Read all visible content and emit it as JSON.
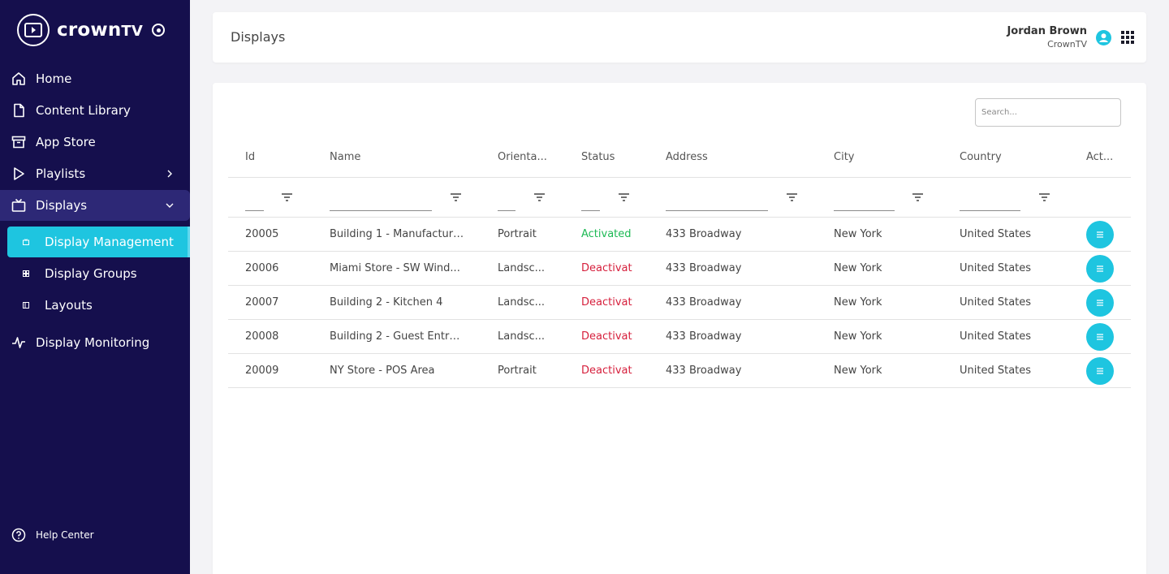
{
  "brand": {
    "name_main": "crown",
    "name_suffix": "TV"
  },
  "sidebar": {
    "items": [
      {
        "label": "Home",
        "icon": "home-icon"
      },
      {
        "label": "Content Library",
        "icon": "file-icon"
      },
      {
        "label": "App Store",
        "icon": "archive-icon"
      },
      {
        "label": "Playlists",
        "icon": "play-icon"
      },
      {
        "label": "Displays",
        "icon": "tv-icon"
      },
      {
        "label": "Display Monitoring",
        "icon": "activity-icon"
      }
    ],
    "sub_items": [
      {
        "label": "Display Management",
        "icon": "display-icon"
      },
      {
        "label": "Display Groups",
        "icon": "grid-icon"
      },
      {
        "label": "Layouts",
        "icon": "layout-icon"
      }
    ],
    "help_label": "Help Center"
  },
  "header": {
    "title": "Displays",
    "user_name": "Jordan Brown",
    "user_org": "CrownTV"
  },
  "search": {
    "placeholder": "Search..."
  },
  "table": {
    "columns": [
      "Id",
      "Name",
      "Orienta...",
      "Status",
      "Address",
      "City",
      "Country",
      "Act..."
    ],
    "rows": [
      {
        "id": "20005",
        "name": "Building 1 - Manufacturi...",
        "orientation": "Portrait",
        "status": "Activated",
        "address": "433 Broadway",
        "city": "New York",
        "country": "United States"
      },
      {
        "id": "20006",
        "name": "Miami Store - SW Wind...",
        "orientation": "Landsc...",
        "status": "Deactivat",
        "address": "433 Broadway",
        "city": "New York",
        "country": "United States"
      },
      {
        "id": "20007",
        "name": "Building 2 - Kitchen 4",
        "orientation": "Landsc...",
        "status": "Deactivat",
        "address": "433 Broadway",
        "city": "New York",
        "country": "United States"
      },
      {
        "id": "20008",
        "name": "Building 2 - Guest Entra...",
        "orientation": "Landsc...",
        "status": "Deactivat",
        "address": "433 Broadway",
        "city": "New York",
        "country": "United States"
      },
      {
        "id": "20009",
        "name": "NY Store - POS Area",
        "orientation": "Portrait",
        "status": "Deactivat",
        "address": "433 Broadway",
        "city": "New York",
        "country": "United States"
      }
    ]
  },
  "colors": {
    "sidebar_bg": "#150f4d",
    "accent": "#1ec5e0",
    "active": "#1db954",
    "inactive": "#d61f3c"
  }
}
